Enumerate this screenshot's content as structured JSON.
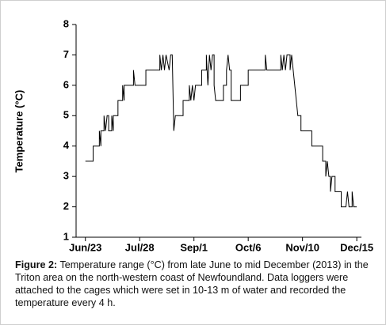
{
  "chart_data": {
    "type": "line",
    "y_label": "Temperature (°C)",
    "caption_label": "Figure 2:",
    "caption": "Temperature range (°C) from late June to mid December (2013) in the Triton area on the north-western coast of Newfoundland. Data loggers were attached to the cages which were set in 10-13 m of water and recorded the temperature every 4 h.",
    "xlim": [
      "Jun/17",
      "Dec/18"
    ],
    "xticks": [
      "Jun/23",
      "Jul/28",
      "Sep/1",
      "Oct/6",
      "Nov/10",
      "Dec/15"
    ],
    "ylim": [
      1,
      8
    ],
    "yticks": [
      1,
      2,
      3,
      4,
      5,
      6,
      7,
      8
    ],
    "grid": false,
    "x": [
      "Jun/23",
      "Jun/28",
      "Jun/28",
      "Jul/2",
      "Jul/2",
      "Jul/3",
      "Jul/3",
      "Jul/5",
      "Jul/5",
      "Jul/6",
      "Jul/7",
      "Jul/8",
      "Jul/8",
      "Jul/10",
      "Jul/10",
      "Jul/11",
      "Jul/11",
      "Jul/14",
      "Jul/14",
      "Jul/17",
      "Jul/17",
      "Jul/18",
      "Jul/18",
      "Jul/24",
      "Jul/24",
      "Jul/25",
      "Aug/1",
      "Aug/1",
      "Aug/10",
      "Aug/10",
      "Aug/11",
      "Aug/12",
      "Aug/13",
      "Aug/14",
      "Aug/16",
      "Aug/17",
      "Aug/18",
      "Aug/19",
      "Aug/20",
      "Aug/25",
      "Aug/25",
      "Aug/29",
      "Aug/29",
      "Aug/30",
      "Aug/31",
      "Sep/1",
      "Sep/2",
      "Sep/6",
      "Sep/6",
      "Sep/9",
      "Sep/9",
      "Sep/10",
      "Sep/11",
      "Sep/12",
      "Sep/13",
      "Sep/14",
      "Sep/14",
      "Sep/15",
      "Sep/20",
      "Sep/20",
      "Sep/22",
      "Sep/22",
      "Sep/23",
      "Sep/24",
      "Sep/25",
      "Sep/25",
      "Oct/1",
      "Oct/1",
      "Oct/6",
      "Oct/6",
      "Oct/17",
      "Oct/17",
      "Oct/18",
      "Oct/27",
      "Oct/27",
      "Oct/28",
      "Oct/29",
      "Oct/30",
      "Oct/31",
      "Nov/2",
      "Nov/2",
      "Nov/3",
      "Nov/4",
      "Nov/6",
      "Nov/7",
      "Nov/9",
      "Nov/9",
      "Nov/16",
      "Nov/16",
      "Nov/23",
      "Nov/23",
      "Nov/25",
      "Nov/25",
      "Nov/26",
      "Nov/27",
      "Nov/28",
      "Nov/28",
      "Nov/29",
      "Dec/1",
      "Dec/1",
      "Dec/5",
      "Dec/5",
      "Dec/8",
      "Dec/9",
      "Dec/10",
      "Dec/12",
      "Dec/12",
      "Dec/13",
      "Dec/15"
    ],
    "series": [
      {
        "name": "Temperature",
        "color": "#000000",
        "values": [
          3.5,
          3.5,
          4,
          4,
          4.5,
          4,
          4.5,
          4.5,
          5,
          4.5,
          5,
          5,
          4.5,
          4.5,
          5,
          4.5,
          5,
          5,
          5.5,
          5.5,
          6,
          5.5,
          6,
          6,
          6.5,
          6,
          6,
          6.5,
          6.5,
          7,
          6.5,
          7,
          6.5,
          7,
          6.5,
          7,
          7,
          4.5,
          5,
          5,
          5.5,
          5.5,
          6,
          5.5,
          6,
          5.5,
          6,
          6,
          6.5,
          6.5,
          7,
          6,
          7,
          6.5,
          7,
          7,
          6,
          5.5,
          5.5,
          6,
          6,
          6.5,
          7,
          6.5,
          6.5,
          5.5,
          5.5,
          6,
          6,
          6.5,
          6.5,
          7,
          6.5,
          6.5,
          7,
          6.5,
          7,
          6.5,
          7,
          7,
          6.5,
          7,
          6.5,
          5.5,
          5,
          5,
          4.5,
          4.5,
          4,
          4,
          3.5,
          3.5,
          3,
          3.5,
          3,
          3,
          2.5,
          3,
          3,
          2.5,
          2.5,
          2,
          2,
          2.5,
          2,
          2,
          2.5,
          2,
          2
        ]
      }
    ]
  }
}
